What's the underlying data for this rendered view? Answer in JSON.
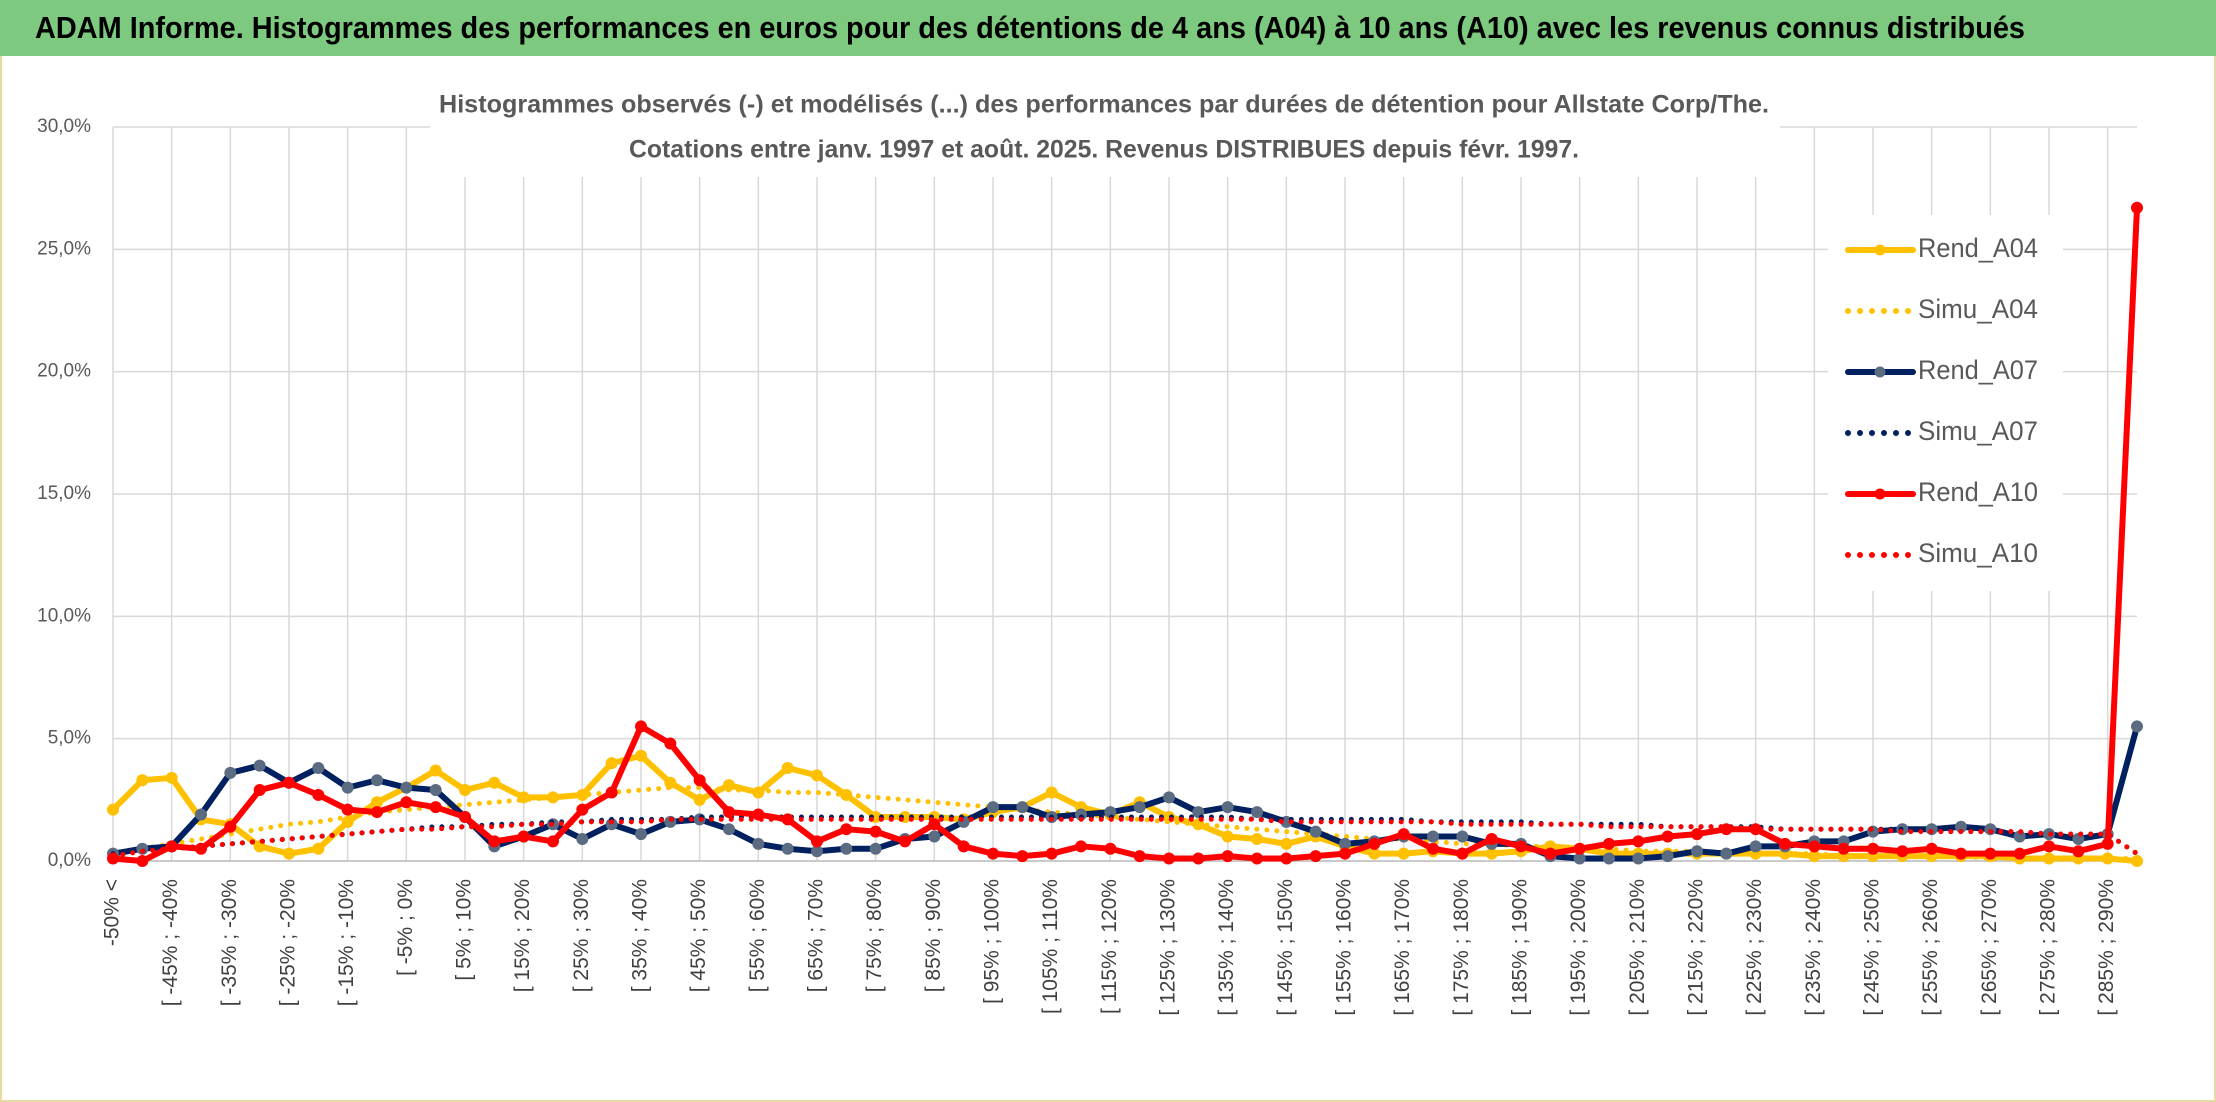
{
  "header": {
    "title": "ADAM Informe. Histogrammes des performances en euros pour des détentions de 4 ans (A04) à 10 ans (A10) avec les revenus connus distribués"
  },
  "chart_data": {
    "type": "line",
    "title": "Histogrammes observés (-) et modélisés (...) des performances par durées de détention pour Allstate Corp/The.",
    "subtitle": "Cotations entre janv. 1997 et août. 2025. Revenus DISTRIBUES depuis févr. 1997.",
    "categories": [
      "-50% <",
      null,
      "[ -45% ; -40%",
      null,
      "[ -35% ; -30%",
      null,
      "[ -25% ; -20%",
      null,
      "[ -15% ; -10%",
      null,
      "[ -5% ; 0%",
      null,
      "[ 5% ; 10%",
      null,
      "[ 15% ; 20%",
      null,
      "[ 25% ; 30%",
      null,
      "[ 35% ; 40%",
      null,
      "[ 45% ; 50%",
      null,
      "[ 55% ; 60%",
      null,
      "[ 65% ; 70%",
      null,
      "[ 75% ; 80%",
      null,
      "[ 85% ; 90%",
      null,
      "[ 95% ; 100%",
      null,
      "[ 105% ; 110%",
      null,
      "[ 115% ; 120%",
      null,
      "[ 125% ; 130%",
      null,
      "[ 135% ; 140%",
      null,
      "[ 145% ; 150%",
      null,
      "[ 155% ; 160%",
      null,
      "[ 165% ; 170%",
      null,
      "[ 175% ; 180%",
      null,
      "[ 185% ; 190%",
      null,
      "[ 195% ; 200%",
      null,
      "[ 205% ; 210%",
      null,
      "[ 215% ; 220%",
      null,
      "[ 225% ; 230%",
      null,
      "[ 235% ; 240%",
      null,
      "[ 245% ; 250%",
      null,
      "[ 255% ; 260%",
      null,
      "[ 265% ; 270%",
      null,
      "[ 275% ; 280%",
      null,
      "[ 285% ; 290%",
      null
    ],
    "ylim": [
      0,
      30
    ],
    "yticks": [
      {
        "value": 0,
        "label": "0,0%"
      },
      {
        "value": 5,
        "label": "5,0%"
      },
      {
        "value": 10,
        "label": "10,0%"
      },
      {
        "value": 15,
        "label": "15,0%"
      },
      {
        "value": 20,
        "label": "20,0%"
      },
      {
        "value": 25,
        "label": "25,0%"
      },
      {
        "value": 30,
        "label": "30,0%"
      }
    ],
    "grid": true,
    "legend": "right",
    "series": [
      {
        "name": "Rend_A04",
        "color": "#ffc000",
        "line_style": "solid",
        "marker": true,
        "marker_color": "#ffc000",
        "values": [
          2.1,
          3.3,
          3.4,
          1.7,
          1.5,
          0.6,
          0.3,
          0.5,
          1.6,
          2.4,
          3.0,
          3.7,
          2.9,
          3.2,
          2.6,
          2.6,
          2.7,
          4.0,
          4.3,
          3.2,
          2.5,
          3.1,
          2.8,
          3.8,
          3.5,
          2.7,
          1.8,
          1.8,
          1.8,
          1.7,
          2.0,
          2.2,
          2.8,
          2.2,
          1.9,
          2.4,
          1.8,
          1.5,
          1.0,
          0.9,
          0.7,
          1.0,
          0.6,
          0.3,
          0.3,
          0.4,
          0.3,
          0.3,
          0.4,
          0.6,
          0.5,
          0.3,
          0.3,
          0.3,
          0.3,
          0.3,
          0.3,
          0.3,
          0.2,
          0.2,
          0.2,
          0.2,
          0.2,
          0.2,
          0.2,
          0.1,
          0.1,
          0.1,
          0.1,
          0.0
        ]
      },
      {
        "name": "Simu_A04",
        "color": "#ffc000",
        "line_style": "dotted",
        "marker": false,
        "values": [
          0.3,
          0.5,
          0.7,
          0.9,
          1.1,
          1.3,
          1.5,
          1.6,
          1.8,
          2.0,
          2.1,
          2.2,
          2.3,
          2.4,
          2.5,
          2.6,
          2.7,
          2.8,
          2.9,
          3.0,
          3.0,
          2.9,
          2.9,
          2.8,
          2.8,
          2.7,
          2.6,
          2.5,
          2.4,
          2.3,
          2.2,
          2.1,
          2.0,
          1.9,
          1.8,
          1.7,
          1.6,
          1.5,
          1.4,
          1.3,
          1.2,
          1.1,
          1.0,
          0.9,
          0.9,
          0.8,
          0.7,
          0.7,
          0.6,
          0.6,
          0.5,
          0.5,
          0.4,
          0.4,
          0.4,
          0.3,
          0.3,
          0.3,
          0.3,
          0.2,
          0.2,
          0.2,
          0.2,
          0.2,
          0.1,
          0.1,
          0.1,
          0.1,
          0.1,
          0.1
        ]
      },
      {
        "name": "Rend_A07",
        "color": "#002060",
        "line_style": "solid",
        "marker": true,
        "marker_color": "#5a6b82",
        "values": [
          0.3,
          0.5,
          0.6,
          1.9,
          3.6,
          3.9,
          3.2,
          3.8,
          3.0,
          3.3,
          3.0,
          2.9,
          1.8,
          0.6,
          1.0,
          1.5,
          0.9,
          1.5,
          1.1,
          1.6,
          1.7,
          1.3,
          0.7,
          0.5,
          0.4,
          0.5,
          0.5,
          0.9,
          1.0,
          1.6,
          2.2,
          2.2,
          1.8,
          1.9,
          2.0,
          2.2,
          2.6,
          2.0,
          2.2,
          2.0,
          1.6,
          1.2,
          0.7,
          0.8,
          1.0,
          1.0,
          1.0,
          0.7,
          0.7,
          0.2,
          0.1,
          0.1,
          0.1,
          0.2,
          0.4,
          0.3,
          0.6,
          0.6,
          0.8,
          0.8,
          1.2,
          1.3,
          1.3,
          1.4,
          1.3,
          1.0,
          1.1,
          0.9,
          1.1,
          5.5
        ]
      },
      {
        "name": "Simu_A07",
        "color": "#002060",
        "line_style": "dotted",
        "marker": false,
        "values": [
          0.3,
          0.4,
          0.5,
          0.6,
          0.7,
          0.8,
          0.9,
          1.0,
          1.1,
          1.2,
          1.3,
          1.4,
          1.4,
          1.5,
          1.5,
          1.6,
          1.6,
          1.7,
          1.7,
          1.7,
          1.8,
          1.8,
          1.8,
          1.8,
          1.8,
          1.8,
          1.8,
          1.8,
          1.8,
          1.8,
          1.8,
          1.8,
          1.8,
          1.8,
          1.8,
          1.8,
          1.8,
          1.8,
          1.8,
          1.7,
          1.7,
          1.7,
          1.7,
          1.7,
          1.7,
          1.6,
          1.6,
          1.6,
          1.6,
          1.5,
          1.5,
          1.5,
          1.5,
          1.4,
          1.4,
          1.4,
          1.4,
          1.3,
          1.3,
          1.3,
          1.3,
          1.3,
          1.2,
          1.2,
          1.2,
          1.2,
          1.1,
          1.1,
          1.1,
          0.3
        ]
      },
      {
        "name": "Rend_A10",
        "color": "#ff0000",
        "line_style": "solid",
        "marker": true,
        "marker_color": "#ff0000",
        "values": [
          0.1,
          0.0,
          0.6,
          0.5,
          1.4,
          2.9,
          3.2,
          2.7,
          2.1,
          2.0,
          2.4,
          2.2,
          1.8,
          0.8,
          1.0,
          0.8,
          2.1,
          2.8,
          5.5,
          4.8,
          3.3,
          2.0,
          1.9,
          1.7,
          0.8,
          1.3,
          1.2,
          0.8,
          1.5,
          0.6,
          0.3,
          0.2,
          0.3,
          0.6,
          0.5,
          0.2,
          0.1,
          0.1,
          0.2,
          0.1,
          0.1,
          0.2,
          0.3,
          0.7,
          1.1,
          0.5,
          0.3,
          0.9,
          0.6,
          0.3,
          0.5,
          0.7,
          0.8,
          1.0,
          1.1,
          1.3,
          1.3,
          0.7,
          0.6,
          0.5,
          0.5,
          0.4,
          0.5,
          0.3,
          0.3,
          0.3,
          0.6,
          0.4,
          0.7,
          26.7
        ]
      },
      {
        "name": "Simu_A10",
        "color": "#ff0000",
        "line_style": "dotted",
        "marker": false,
        "values": [
          0.2,
          0.4,
          0.5,
          0.6,
          0.7,
          0.8,
          0.9,
          1.0,
          1.1,
          1.2,
          1.3,
          1.3,
          1.4,
          1.4,
          1.5,
          1.5,
          1.6,
          1.6,
          1.6,
          1.7,
          1.7,
          1.7,
          1.7,
          1.7,
          1.7,
          1.7,
          1.7,
          1.7,
          1.7,
          1.7,
          1.7,
          1.7,
          1.7,
          1.7,
          1.7,
          1.7,
          1.7,
          1.7,
          1.7,
          1.7,
          1.6,
          1.6,
          1.6,
          1.6,
          1.6,
          1.6,
          1.5,
          1.5,
          1.5,
          1.5,
          1.5,
          1.4,
          1.4,
          1.4,
          1.4,
          1.4,
          1.3,
          1.3,
          1.3,
          1.3,
          1.3,
          1.2,
          1.2,
          1.2,
          1.2,
          1.2,
          1.1,
          1.1,
          1.1,
          0.3
        ]
      }
    ]
  }
}
